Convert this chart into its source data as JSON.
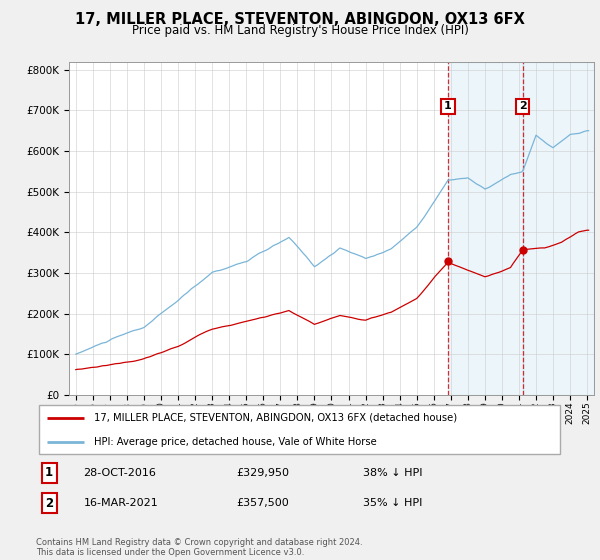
{
  "title": "17, MILLER PLACE, STEVENTON, ABINGDON, OX13 6FX",
  "subtitle": "Price paid vs. HM Land Registry's House Price Index (HPI)",
  "legend_line1": "17, MILLER PLACE, STEVENTON, ABINGDON, OX13 6FX (detached house)",
  "legend_line2": "HPI: Average price, detached house, Vale of White Horse",
  "footnote": "Contains HM Land Registry data © Crown copyright and database right 2024.\nThis data is licensed under the Open Government Licence v3.0.",
  "transaction1_date": "28-OCT-2016",
  "transaction1_price": 329950,
  "transaction1_label": "38% ↓ HPI",
  "transaction2_date": "16-MAR-2021",
  "transaction2_price": 357500,
  "transaction2_label": "35% ↓ HPI",
  "t1_x": 2016.83,
  "t2_x": 2021.21,
  "hpi_color": "#7ab5d8",
  "price_color": "#cc0000",
  "background_color": "#f0f0f0",
  "plot_background": "#ffffff",
  "ylim": [
    0,
    820000
  ],
  "yticks": [
    0,
    100000,
    200000,
    300000,
    400000,
    500000,
    600000,
    700000,
    800000
  ],
  "xlim_start": 1994.6,
  "xlim_end": 2025.4,
  "x_tick_start": 1995,
  "x_tick_end": 2025
}
